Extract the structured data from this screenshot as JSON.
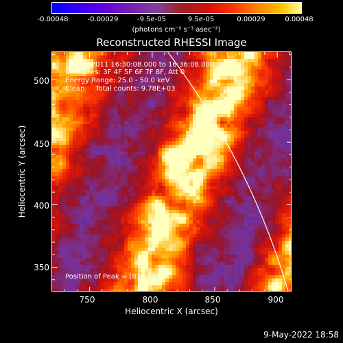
{
  "colorbar": {
    "ticks": [
      "-0.00048",
      "-0.00029",
      "-9.5e-05",
      "9.5e-05",
      "0.00029",
      "0.00048"
    ],
    "unit": "(photons cm⁻² s⁻¹ asec⁻²)"
  },
  "chart_data": {
    "type": "heatmap",
    "title": "Reconstructed RHESSI Image",
    "xlabel": "Heliocentric X (arcsec)",
    "ylabel": "Heliocentric Y (arcsec)",
    "xlim": [
      720,
      912
    ],
    "ylim": [
      330,
      522
    ],
    "xticks": [
      "750",
      "800",
      "850",
      "900"
    ],
    "yticks": [
      "350",
      "400",
      "450",
      "500"
    ],
    "colorbar_range": [
      -0.00048,
      0.00048
    ],
    "peak": [
      814,
      439
    ],
    "annotations": {
      "time": "8-Mar-2011 16:30:08.000 to 16:36:08.000",
      "detectors": "Detectors: 3F 4F 5F 6F 7F 8F, Att 0",
      "energy": "Energy Range: 25.0 - 50.0 keV",
      "clean": "Clean     Total counts: 9.78E+03",
      "peak_text": "Position of Peak = [814,439]"
    }
  },
  "footer": "9-May-2022 18:58"
}
